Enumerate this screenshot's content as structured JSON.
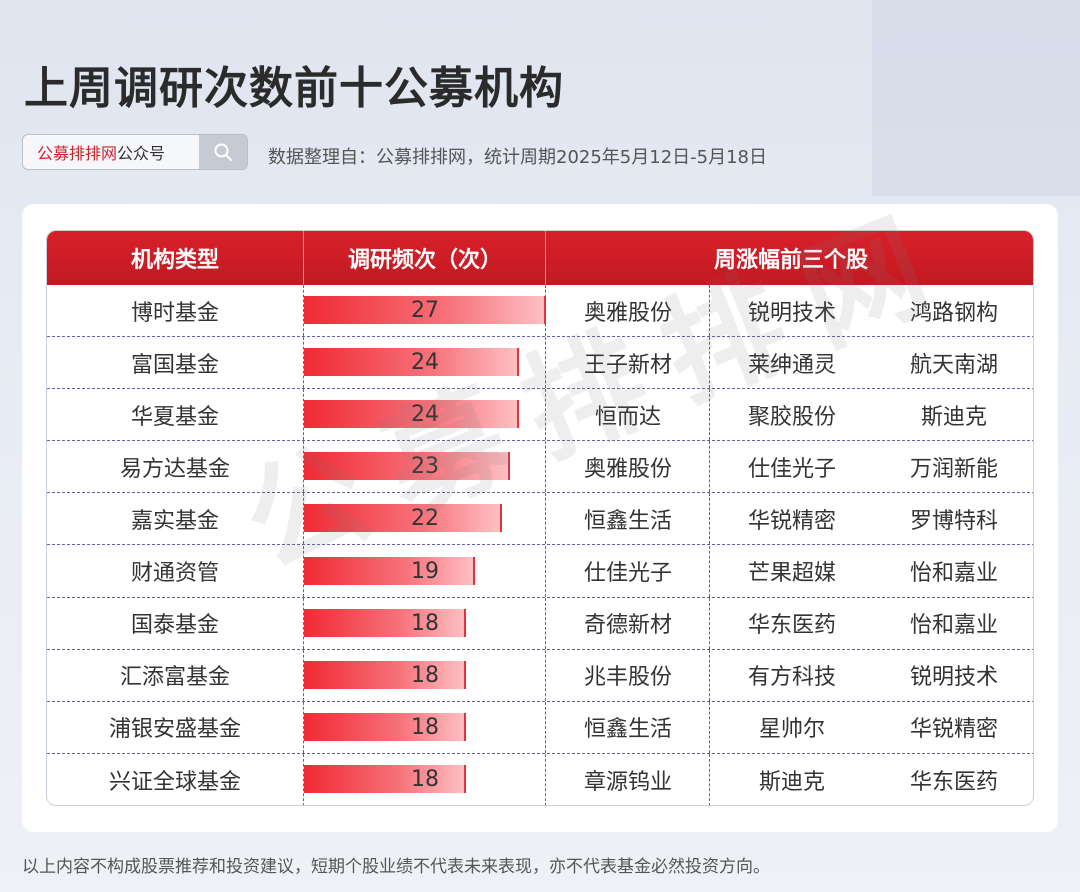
{
  "title": "上周调研次数前十公募机构",
  "search": {
    "brand": "公募排排网",
    "suffix": "公众号",
    "icon": "search-icon"
  },
  "source_note": "数据整理自：公募排排网，统计周期2025年5月12日-5月18日",
  "watermark": "公募排排网",
  "disclaimer": "以上内容不构成股票推荐和投资建议，短期个股业绩不代表未来表现，亦不代表基金必然投资方向。",
  "colors": {
    "header_red": "#d0232a",
    "bar_red": "#f02a34"
  },
  "chart_data": {
    "type": "table",
    "columns": [
      "机构类型",
      "调研频次（次）",
      "周涨幅前三个股"
    ],
    "bar_max": 27,
    "rows": [
      {
        "institution": "博时基金",
        "count": 27,
        "stocks": [
          "奥雅股份",
          "锐明技术",
          "鸿路钢构"
        ]
      },
      {
        "institution": "富国基金",
        "count": 24,
        "stocks": [
          "王子新材",
          "莱绅通灵",
          "航天南湖"
        ]
      },
      {
        "institution": "华夏基金",
        "count": 24,
        "stocks": [
          "恒而达",
          "聚胶股份",
          "斯迪克"
        ]
      },
      {
        "institution": "易方达基金",
        "count": 23,
        "stocks": [
          "奥雅股份",
          "仕佳光子",
          "万润新能"
        ]
      },
      {
        "institution": "嘉实基金",
        "count": 22,
        "stocks": [
          "恒鑫生活",
          "华锐精密",
          "罗博特科"
        ]
      },
      {
        "institution": "财通资管",
        "count": 19,
        "stocks": [
          "仕佳光子",
          "芒果超媒",
          "怡和嘉业"
        ]
      },
      {
        "institution": "国泰基金",
        "count": 18,
        "stocks": [
          "奇德新材",
          "华东医药",
          "怡和嘉业"
        ]
      },
      {
        "institution": "汇添富基金",
        "count": 18,
        "stocks": [
          "兆丰股份",
          "有方科技",
          "锐明技术"
        ]
      },
      {
        "institution": "浦银安盛基金",
        "count": 18,
        "stocks": [
          "恒鑫生活",
          "星帅尔",
          "华锐精密"
        ]
      },
      {
        "institution": "兴证全球基金",
        "count": 18,
        "stocks": [
          "章源钨业",
          "斯迪克",
          "华东医药"
        ]
      }
    ]
  }
}
